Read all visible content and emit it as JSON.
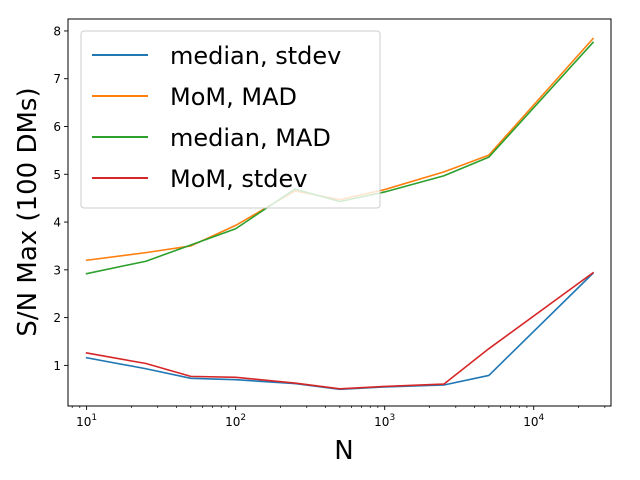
{
  "chart_data": {
    "type": "line",
    "title": "",
    "xlabel": "N",
    "ylabel": "S/N Max (100 DMs)",
    "xscale": "log",
    "xlim": [
      7.5,
      33000
    ],
    "ylim": [
      0.15,
      8.25
    ],
    "grid": false,
    "legend_position": "top-left",
    "x_tick_labels": [
      {
        "base": "10",
        "exp": "1"
      },
      {
        "base": "10",
        "exp": "2"
      },
      {
        "base": "10",
        "exp": "3"
      },
      {
        "base": "10",
        "exp": "4"
      }
    ],
    "y_ticks": [
      1,
      2,
      3,
      4,
      5,
      6,
      7,
      8
    ],
    "y_tick_labels": [
      "1",
      "2",
      "3",
      "4",
      "5",
      "6",
      "7",
      "8"
    ],
    "x": [
      10,
      25,
      50,
      100,
      250,
      500,
      1000,
      2500,
      5000,
      25000
    ],
    "series": [
      {
        "name": "median, stdev",
        "color": "#1f77b4",
        "values": [
          1.16,
          0.93,
          0.73,
          0.7,
          0.62,
          0.5,
          0.55,
          0.59,
          0.79,
          2.93
        ]
      },
      {
        "name": "MoM, MAD",
        "color": "#ff7f0e",
        "values": [
          3.2,
          3.36,
          3.5,
          3.93,
          4.65,
          4.47,
          4.68,
          5.05,
          5.4,
          7.84
        ]
      },
      {
        "name": "median, MAD",
        "color": "#2ca02c",
        "values": [
          2.92,
          3.18,
          3.52,
          3.86,
          4.69,
          4.43,
          4.63,
          4.97,
          5.36,
          7.76
        ]
      },
      {
        "name": "MoM, stdev",
        "color": "#d62728",
        "values": [
          1.26,
          1.04,
          0.77,
          0.75,
          0.63,
          0.51,
          0.56,
          0.61,
          1.35,
          2.94
        ]
      }
    ]
  }
}
